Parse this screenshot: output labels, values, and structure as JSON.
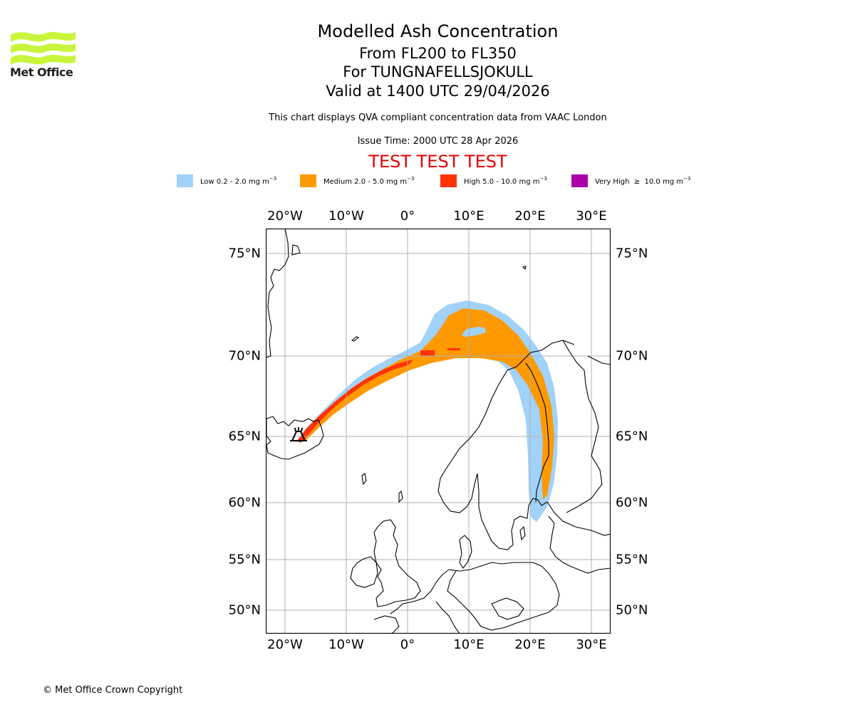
{
  "logo": {
    "text": "Met Office",
    "color": "#c8f53c"
  },
  "titles": {
    "main": "Modelled Ash Concentration",
    "levels": "From FL200 to FL350",
    "volcano": "For TUNGNAFELLSJOKULL",
    "valid": "Valid at 1400 UTC 29/04/2026",
    "description": "This chart displays QVA compliant concentration data from VAAC London",
    "issue_time": "Issue Time: 2000 UTC 28 Apr 2026",
    "test_banner": "TEST TEST TEST"
  },
  "legend": [
    {
      "label": "Low 0.2 - 2.0 mg m",
      "exp": "−3",
      "color": "#a0d2fa"
    },
    {
      "label": "Medium 2.0 - 5.0 mg m",
      "exp": "−3",
      "color": "#ff9900"
    },
    {
      "label": "High 5.0 - 10.0 mg m",
      "exp": "−3",
      "color": "#ff3300"
    },
    {
      "label": "Very High  ≥  10.0 mg m",
      "exp": "−3",
      "color": "#aa00aa"
    }
  ],
  "axes": {
    "lon_ticks": [
      "20°W",
      "10°W",
      "0°",
      "10°E",
      "20°E",
      "30°E"
    ],
    "lon_values": [
      -20,
      -10,
      0,
      10,
      20,
      30
    ],
    "lat_ticks": [
      "75°N",
      "70°N",
      "65°N",
      "60°N",
      "55°N",
      "50°N"
    ],
    "lat_values": [
      75,
      70,
      65,
      60,
      55,
      50
    ],
    "lon_range": [
      -23,
      33
    ],
    "lat_range": [
      48,
      76.5
    ]
  },
  "volcano_marker": {
    "name": "TUNGNAFELLSJOKULL",
    "lon": -17.9,
    "lat": 64.7
  },
  "footer": {
    "copyright": "© Met Office Crown Copyright"
  }
}
